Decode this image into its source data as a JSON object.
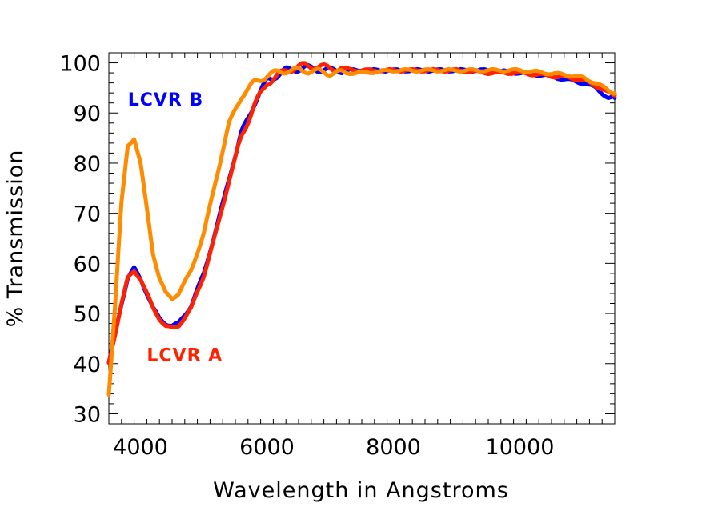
{
  "chart_data": {
    "type": "line",
    "title": "",
    "xlabel": "Wavelength in Angstroms",
    "ylabel": "% Transmission",
    "xlim": [
      3500,
      11500
    ],
    "ylim": [
      28,
      102
    ],
    "xticks": [
      4000,
      6000,
      8000,
      10000
    ],
    "yticks": [
      30,
      40,
      50,
      60,
      70,
      80,
      90,
      100
    ],
    "grid": false,
    "annotations": [
      {
        "text": "LCVR B",
        "color": "#0000ff",
        "x": 3800,
        "y": 91.5
      },
      {
        "text": "LCVR A",
        "color": "#ff2200",
        "x": 4100,
        "y": 40.5
      }
    ],
    "series": [
      {
        "color": "#0000ff",
        "x": [
          3500,
          3600,
          3700,
          3800,
          3900,
          4000,
          4100,
          4200,
          4300,
          4400,
          4500,
          4600,
          4800,
          5000,
          5200,
          5400,
          5600,
          5800,
          6000,
          6300,
          6600,
          7000,
          7500,
          8000,
          8500,
          9000,
          9500,
          10000,
          10400,
          10800,
          11000,
          11200,
          11400,
          11500
        ],
        "values": [
          40,
          46,
          52,
          57,
          59,
          57,
          54,
          51,
          49,
          48,
          47.5,
          48,
          51.5,
          58,
          67,
          77,
          86,
          92,
          96.5,
          98.5,
          99,
          98.5,
          98.5,
          98.5,
          98.5,
          98.5,
          98.5,
          98,
          97.5,
          96.5,
          96,
          95,
          93,
          93
        ]
      },
      {
        "color": "#ff2200",
        "x": [
          3500,
          3600,
          3700,
          3800,
          3900,
          4000,
          4100,
          4200,
          4300,
          4400,
          4500,
          4600,
          4800,
          5000,
          5200,
          5400,
          5600,
          5800,
          6000,
          6300,
          6600,
          7000,
          7500,
          8000,
          8500,
          9000,
          9500,
          10000,
          10400,
          10800,
          11000,
          11200,
          11400,
          11500
        ],
        "values": [
          40,
          46,
          52,
          57,
          58.5,
          57,
          54,
          51,
          49,
          47.5,
          47,
          47.5,
          51,
          57.5,
          66.5,
          76.5,
          85.5,
          91.5,
          96,
          98.5,
          99.5,
          99,
          98.5,
          98.5,
          98.5,
          98.5,
          98,
          98,
          97.5,
          97,
          96.5,
          95.5,
          94,
          93.5
        ]
      },
      {
        "color": "#ff8c00",
        "x": [
          3500,
          3600,
          3700,
          3800,
          3900,
          4000,
          4100,
          4200,
          4300,
          4400,
          4500,
          4600,
          4800,
          5000,
          5200,
          5400,
          5600,
          5800,
          6000,
          6300,
          6600,
          7000,
          7500,
          8000,
          8500,
          9000,
          9500,
          10000,
          10400,
          10800,
          11000,
          11200,
          11400,
          11500
        ],
        "values": [
          34,
          52,
          72,
          83.5,
          85,
          80,
          71,
          62,
          57,
          54,
          53,
          54,
          58.5,
          66,
          77,
          88,
          93.5,
          96,
          97.5,
          98.5,
          98.5,
          98,
          98,
          98.5,
          98.5,
          98.5,
          98.5,
          98.5,
          98,
          97.5,
          97,
          96,
          94.5,
          94
        ]
      }
    ]
  }
}
